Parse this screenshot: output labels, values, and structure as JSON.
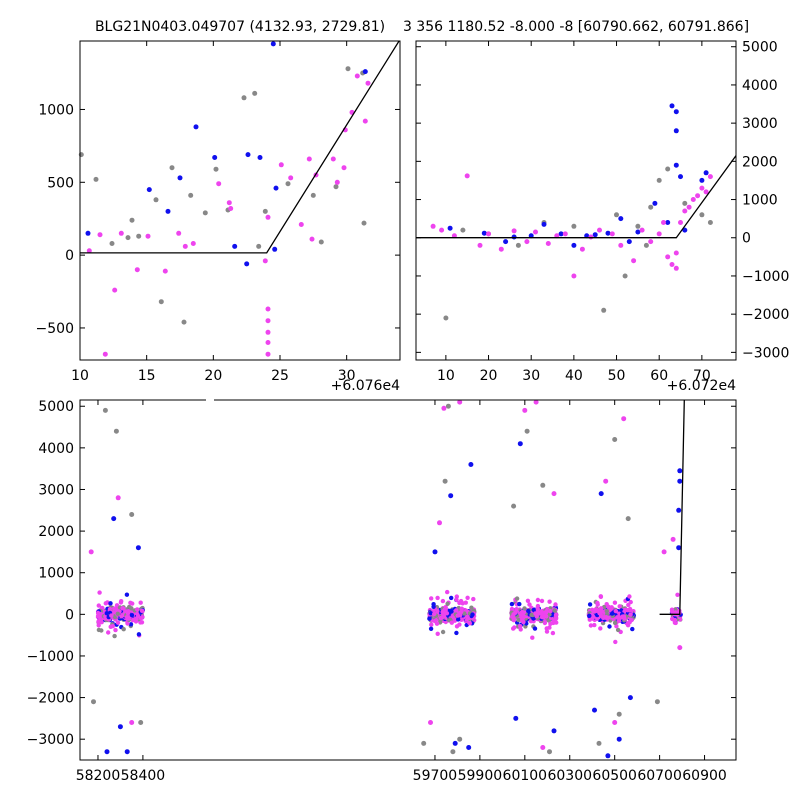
{
  "chart_data": [
    {
      "id": "top-left",
      "type": "scatter",
      "title": "BLG21N0403.049707 (4132.93, 2729.81)",
      "x_offset_label": "+6.076e4",
      "xlim": [
        10,
        34
      ],
      "ylim": [
        -720,
        1470
      ],
      "xticks": [
        10,
        15,
        20,
        25,
        30
      ],
      "yticks": [
        -500,
        0,
        500,
        1000
      ],
      "ytick_side": "left",
      "model": {
        "x": [
          10,
          24,
          34
        ],
        "y": [
          15,
          15,
          1480
        ]
      },
      "series": [
        {
          "name": "gray",
          "color": "#888888",
          "points": [
            [
              10.1,
              690
            ],
            [
              11.2,
              520
            ],
            [
              12.4,
              80
            ],
            [
              13.6,
              120
            ],
            [
              13.9,
              240
            ],
            [
              14.4,
              130
            ],
            [
              15.7,
              380
            ],
            [
              16.1,
              -320
            ],
            [
              16.9,
              600
            ],
            [
              17.8,
              -460
            ],
            [
              18.3,
              410
            ],
            [
              19.4,
              290
            ],
            [
              20.2,
              590
            ],
            [
              21.1,
              310
            ],
            [
              22.3,
              1080
            ],
            [
              23.1,
              1110
            ],
            [
              23.4,
              60
            ],
            [
              23.9,
              300
            ],
            [
              25.6,
              490
            ],
            [
              27.5,
              410
            ],
            [
              28.1,
              90
            ],
            [
              29.2,
              470
            ],
            [
              30.1,
              1280
            ],
            [
              31.2,
              1250
            ],
            [
              31.3,
              220
            ]
          ]
        },
        {
          "name": "blue",
          "color": "#1010ee",
          "points": [
            [
              10.6,
              150
            ],
            [
              15.2,
              450
            ],
            [
              16.6,
              300
            ],
            [
              17.5,
              530
            ],
            [
              18.7,
              880
            ],
            [
              20.1,
              670
            ],
            [
              21.6,
              60
            ],
            [
              22.5,
              -60
            ],
            [
              22.6,
              690
            ],
            [
              23.5,
              670
            ],
            [
              24.5,
              1450
            ],
            [
              24.6,
              40
            ],
            [
              24.7,
              460
            ],
            [
              31.4,
              1260
            ]
          ]
        },
        {
          "name": "pink",
          "color": "#ee44ee",
          "points": [
            [
              10.7,
              30
            ],
            [
              11.5,
              140
            ],
            [
              11.9,
              -680
            ],
            [
              12.6,
              -240
            ],
            [
              13.1,
              150
            ],
            [
              14.3,
              -100
            ],
            [
              15.1,
              130
            ],
            [
              16.4,
              -110
            ],
            [
              17.4,
              150
            ],
            [
              17.9,
              60
            ],
            [
              18.5,
              80
            ],
            [
              20.4,
              490
            ],
            [
              21.2,
              360
            ],
            [
              21.3,
              320
            ],
            [
              23.9,
              -40
            ],
            [
              24.1,
              -370
            ],
            [
              24.1,
              -450
            ],
            [
              24.1,
              -530
            ],
            [
              24.1,
              -600
            ],
            [
              24.1,
              -680
            ],
            [
              24.1,
              260
            ],
            [
              25.1,
              620
            ],
            [
              25.8,
              530
            ],
            [
              26.6,
              210
            ],
            [
              27.2,
              660
            ],
            [
              27.4,
              110
            ],
            [
              27.7,
              550
            ],
            [
              29.0,
              660
            ],
            [
              29.3,
              500
            ],
            [
              29.8,
              600
            ],
            [
              29.9,
              860
            ],
            [
              30.4,
              980
            ],
            [
              30.8,
              1230
            ],
            [
              31.4,
              920
            ],
            [
              31.6,
              1180
            ]
          ]
        }
      ]
    },
    {
      "id": "top-right",
      "type": "scatter",
      "title": "3 356 1180.52 -8.000 -8 [60790.662, 60791.866]",
      "x_offset_label": "+6.072e4",
      "xlim": [
        3,
        78
      ],
      "ylim": [
        -3200,
        5150
      ],
      "xticks": [
        10,
        20,
        30,
        40,
        50,
        60,
        70
      ],
      "yticks": [
        -3000,
        -2000,
        -1000,
        0,
        1000,
        2000,
        3000,
        4000,
        5000
      ],
      "ytick_side": "right",
      "model": {
        "x": [
          3,
          64,
          78
        ],
        "y": [
          0,
          0,
          2150
        ]
      },
      "series": [
        {
          "name": "gray",
          "color": "#888888",
          "points": [
            [
              10,
              -2100
            ],
            [
              14,
              200
            ],
            [
              20,
              100
            ],
            [
              27,
              -200
            ],
            [
              33,
              400
            ],
            [
              40,
              300
            ],
            [
              47,
              -1900
            ],
            [
              50,
              600
            ],
            [
              52,
              -1000
            ],
            [
              55,
              300
            ],
            [
              57,
              -200
            ],
            [
              58,
              800
            ],
            [
              60,
              1500
            ],
            [
              62,
              1800
            ],
            [
              66,
              900
            ],
            [
              70,
              600
            ],
            [
              72,
              400
            ]
          ]
        },
        {
          "name": "blue",
          "color": "#1010ee",
          "points": [
            [
              11,
              250
            ],
            [
              19,
              120
            ],
            [
              24,
              -100
            ],
            [
              26,
              20
            ],
            [
              30,
              50
            ],
            [
              33,
              350
            ],
            [
              37,
              100
            ],
            [
              40,
              -200
            ],
            [
              43,
              50
            ],
            [
              45,
              80
            ],
            [
              48,
              120
            ],
            [
              51,
              500
            ],
            [
              53,
              -100
            ],
            [
              55,
              150
            ],
            [
              59,
              900
            ],
            [
              62,
              400
            ],
            [
              63,
              3450
            ],
            [
              64,
              3300
            ],
            [
              64,
              1900
            ],
            [
              64,
              2800
            ],
            [
              65,
              1600
            ],
            [
              66,
              200
            ],
            [
              70,
              1500
            ],
            [
              71,
              1700
            ]
          ]
        },
        {
          "name": "pink",
          "color": "#ee44ee",
          "points": [
            [
              7,
              300
            ],
            [
              9,
              200
            ],
            [
              12,
              50
            ],
            [
              15,
              1620
            ],
            [
              18,
              -200
            ],
            [
              20,
              100
            ],
            [
              23,
              -300
            ],
            [
              26,
              180
            ],
            [
              29,
              -100
            ],
            [
              31,
              150
            ],
            [
              34,
              -150
            ],
            [
              36,
              50
            ],
            [
              38,
              100
            ],
            [
              40,
              -1000
            ],
            [
              42,
              -300
            ],
            [
              44,
              20
            ],
            [
              46,
              200
            ],
            [
              49,
              100
            ],
            [
              51,
              -200
            ],
            [
              54,
              -600
            ],
            [
              56,
              200
            ],
            [
              58,
              -100
            ],
            [
              60,
              100
            ],
            [
              61,
              400
            ],
            [
              62,
              -500
            ],
            [
              63,
              -700
            ],
            [
              64,
              -400
            ],
            [
              64,
              -800
            ],
            [
              65,
              400
            ],
            [
              66,
              700
            ],
            [
              67,
              800
            ],
            [
              68,
              1000
            ],
            [
              69,
              1100
            ],
            [
              70,
              1300
            ],
            [
              71,
              1200
            ],
            [
              72,
              1600
            ]
          ]
        }
      ]
    },
    {
      "id": "bottom",
      "type": "scatter",
      "title": "",
      "xlim": [
        58120,
        61040
      ],
      "ylim": [
        -3500,
        5150
      ],
      "xticks": [
        58200,
        58400,
        59700,
        59900,
        60100,
        60300,
        60500,
        60700,
        60900
      ],
      "yticks": [
        -3000,
        -2000,
        -1000,
        0,
        1000,
        2000,
        3000,
        4000,
        5000
      ],
      "ytick_side": "left",
      "model": {
        "x": [
          60700,
          60790,
          60810
        ],
        "y": [
          0,
          0,
          5150
        ]
      },
      "clusters": [
        {
          "center": 58300,
          "width": 200
        },
        {
          "center": 59775,
          "width": 200
        },
        {
          "center": 60140,
          "width": 200
        },
        {
          "center": 60485,
          "width": 200
        },
        {
          "center": 60775,
          "width": 40
        }
      ],
      "series": [
        {
          "name": "gray",
          "color": "#888888",
          "points": [
            [
              58233,
              4900
            ],
            [
              58282,
              4400
            ],
            [
              58350,
              2400
            ],
            [
              58180,
              -2100
            ],
            [
              58390,
              -2600
            ],
            [
              59760,
              5000
            ],
            [
              59745,
              3200
            ],
            [
              59780,
              -3300
            ],
            [
              59650,
              -3100
            ],
            [
              59810,
              -3000
            ],
            [
              60110,
              4400
            ],
            [
              60180,
              3100
            ],
            [
              60210,
              -3300
            ],
            [
              60050,
              2600
            ],
            [
              60500,
              4200
            ],
            [
              60520,
              -2400
            ],
            [
              60430,
              -3100
            ],
            [
              60560,
              2300
            ],
            [
              60690,
              -2100
            ]
          ]
        },
        {
          "name": "blue",
          "color": "#1010ee",
          "points": [
            [
              58240,
              -3300
            ],
            [
              58330,
              -3300
            ],
            [
              58270,
              2300
            ],
            [
              58300,
              -2700
            ],
            [
              58380,
              1600
            ],
            [
              59860,
              3600
            ],
            [
              59770,
              2850
            ],
            [
              59700,
              1500
            ],
            [
              59790,
              -3100
            ],
            [
              59850,
              -3200
            ],
            [
              60080,
              4100
            ],
            [
              60060,
              -2500
            ],
            [
              60230,
              -2800
            ],
            [
              60470,
              -3400
            ],
            [
              60410,
              -2300
            ],
            [
              60520,
              -3000
            ],
            [
              60570,
              -2000
            ],
            [
              60440,
              2900
            ],
            [
              60790,
              3450
            ],
            [
              60790,
              3200
            ],
            [
              60785,
              2500
            ],
            [
              60785,
              1600
            ]
          ]
        },
        {
          "name": "pink",
          "color": "#ee44ee",
          "points": [
            [
              58290,
              2800
            ],
            [
              58350,
              -2600
            ],
            [
              58170,
              1500
            ],
            [
              59740,
              4950
            ],
            [
              59810,
              5100
            ],
            [
              59720,
              2200
            ],
            [
              59680,
              -2600
            ],
            [
              60100,
              4900
            ],
            [
              60150,
              5100
            ],
            [
              60180,
              -3200
            ],
            [
              60230,
              2900
            ],
            [
              60460,
              3200
            ],
            [
              60540,
              4700
            ],
            [
              60500,
              -2600
            ],
            [
              60720,
              1500
            ],
            [
              60760,
              1800
            ],
            [
              60790,
              -800
            ]
          ]
        }
      ]
    }
  ]
}
